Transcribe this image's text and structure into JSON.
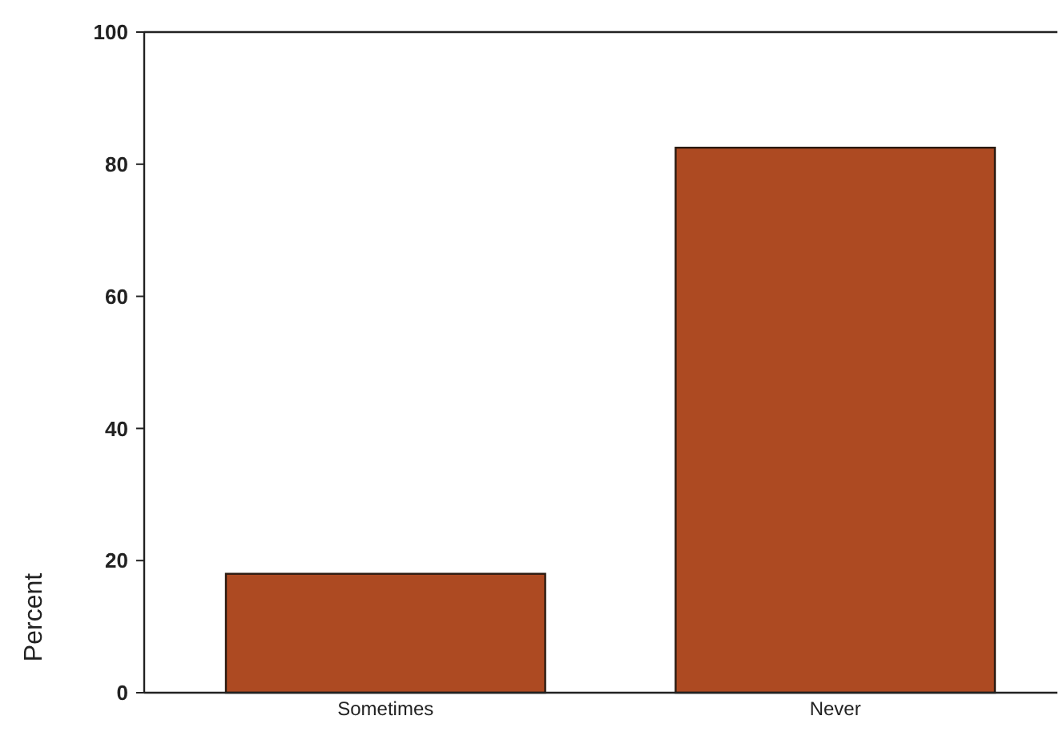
{
  "chart_data": {
    "type": "bar",
    "ylabel": "Percent",
    "categories": [
      "Sometimes",
      "Never"
    ],
    "values": [
      18,
      82.5
    ],
    "color": "#ad4a22",
    "ylim": [
      0,
      100
    ],
    "yticks": [
      0,
      20,
      40,
      60,
      80,
      100
    ],
    "grid": false
  }
}
